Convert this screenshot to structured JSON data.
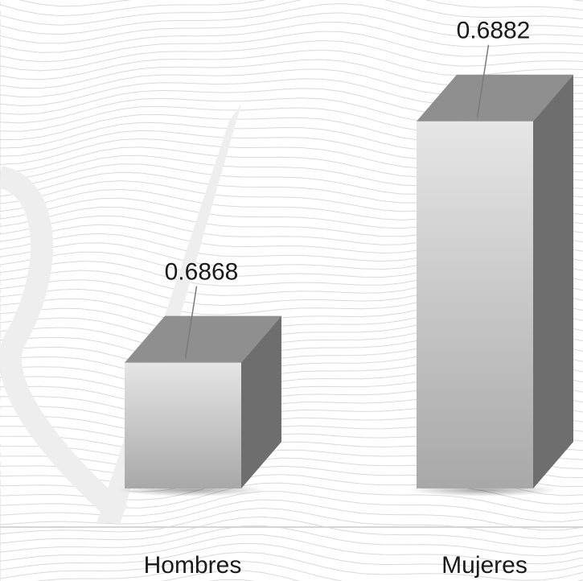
{
  "chart_data": {
    "type": "bar",
    "categories": [
      "Hombres",
      "Mujeres"
    ],
    "values": [
      0.6868,
      0.6882
    ],
    "data_labels": [
      "0.6868",
      "0.6882"
    ],
    "title": "",
    "xlabel": "",
    "ylabel": "",
    "grid": false,
    "legend": "none",
    "style": "3d-column",
    "colors": {
      "front_top": "#e6e6e6",
      "front_bottom": "#a8a8a8",
      "top_face": "#8f8f8f",
      "side_face": "#6e6e6e",
      "wave_lines": "#d9d9d9",
      "watermark": "#eeeeee"
    }
  }
}
